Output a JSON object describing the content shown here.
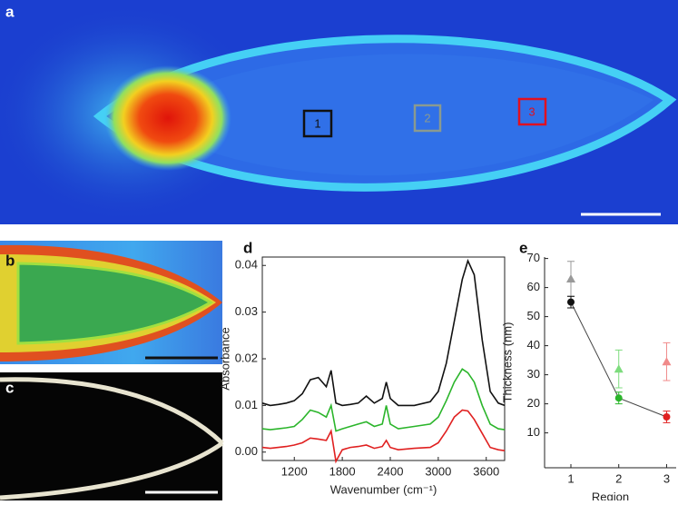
{
  "panels": {
    "a": "a",
    "b": "b",
    "c": "c",
    "d": "d",
    "e": "e"
  },
  "regions": [
    "1",
    "2",
    "3"
  ],
  "chart_data": [
    {
      "type": "line",
      "xlabel": "Wavenumber (cm⁻¹)",
      "ylabel": "Absorbance",
      "x": [
        800,
        900,
        1000,
        1100,
        1200,
        1300,
        1400,
        1500,
        1600,
        1660,
        1720,
        1800,
        1900,
        2000,
        2100,
        2200,
        2300,
        2350,
        2400,
        2500,
        2700,
        2900,
        3000,
        3100,
        3200,
        3300,
        3370,
        3450,
        3550,
        3650,
        3750,
        3830
      ],
      "series": [
        {
          "color": "#111111",
          "values": [
            0.0105,
            0.01,
            0.0102,
            0.0105,
            0.011,
            0.0125,
            0.0155,
            0.016,
            0.014,
            0.0175,
            0.0105,
            0.01,
            0.0102,
            0.0105,
            0.012,
            0.0105,
            0.0115,
            0.015,
            0.0115,
            0.01,
            0.01,
            0.0108,
            0.013,
            0.019,
            0.028,
            0.037,
            0.041,
            0.038,
            0.024,
            0.013,
            0.0105,
            0.01
          ]
        },
        {
          "color": "#2bb52b",
          "values": [
            0.005,
            0.0048,
            0.005,
            0.0052,
            0.0055,
            0.007,
            0.009,
            0.0085,
            0.0075,
            0.01,
            0.0045,
            0.005,
            0.0055,
            0.006,
            0.0065,
            0.0055,
            0.006,
            0.01,
            0.006,
            0.005,
            0.0055,
            0.006,
            0.0075,
            0.011,
            0.015,
            0.0178,
            0.017,
            0.015,
            0.01,
            0.006,
            0.005,
            0.0048
          ]
        },
        {
          "color": "#e02020",
          "values": [
            0.001,
            0.0008,
            0.001,
            0.0012,
            0.0015,
            0.002,
            0.003,
            0.0028,
            0.0025,
            0.0045,
            -0.002,
            0.0005,
            0.001,
            0.0012,
            0.0015,
            0.0008,
            0.0012,
            0.0025,
            0.001,
            0.0005,
            0.0008,
            0.001,
            0.002,
            0.0045,
            0.0075,
            0.009,
            0.0088,
            0.007,
            0.004,
            0.001,
            0.0005,
            0.0003
          ]
        }
      ],
      "xlim": [
        800,
        3830
      ],
      "xticks": [
        1200,
        1800,
        2400,
        3000,
        3600
      ],
      "ylim": [
        -0.0018,
        0.0418
      ],
      "yticks": [
        {
          "value": 0,
          "label": "0.00"
        },
        {
          "value": 0.01,
          "label": "0.01"
        },
        {
          "value": 0.02,
          "label": "0.02"
        },
        {
          "value": 0.03,
          "label": "0.03"
        },
        {
          "value": 0.04,
          "label": "0.04"
        }
      ]
    },
    {
      "type": "scatter",
      "xlabel": "Region",
      "ylabel": "Thickness (nm)",
      "x": [
        1,
        2,
        3
      ],
      "series": [
        {
          "marker": "triangle",
          "colors": [
            "#999999",
            "#7ddc7d",
            "#f08a8a"
          ],
          "values": [
            63,
            32,
            34.5
          ],
          "errors": [
            6,
            6.5,
            6.5
          ]
        },
        {
          "marker": "circle",
          "line": true,
          "colors": [
            "#111111",
            "#2bb52b",
            "#e02020"
          ],
          "values": [
            55,
            22,
            15.5
          ],
          "errors": [
            2,
            2,
            2
          ]
        }
      ],
      "xlim": [
        0.45,
        3.2
      ],
      "xticks": [
        1,
        2,
        3
      ],
      "ylim": [
        -2,
        70.5
      ],
      "yticks": [
        10,
        20,
        30,
        40,
        50,
        60,
        70
      ]
    }
  ]
}
